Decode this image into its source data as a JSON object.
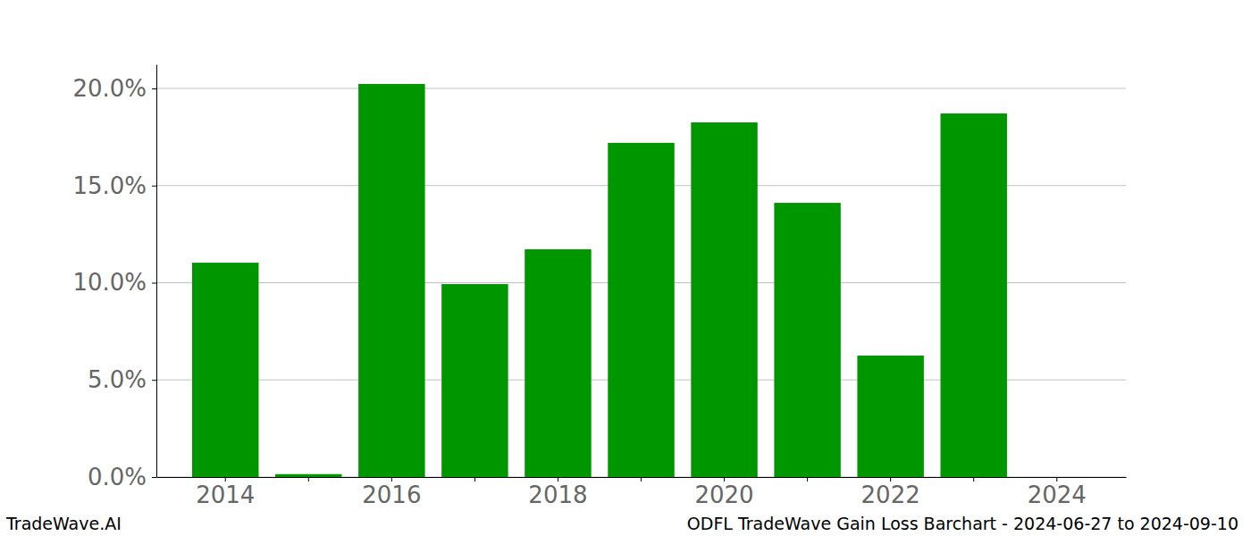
{
  "chart_data": {
    "type": "bar",
    "title": "ODFL TradeWave Gain Loss Barchart - 2024-06-27 to 2024-09-10",
    "annotations": [
      "TradeWave.AI"
    ],
    "categories": [
      "2014",
      null,
      "2016",
      null,
      "2018",
      null,
      "2020",
      null,
      "2022",
      null,
      "2024"
    ],
    "values": [
      11.03,
      0.15,
      20.23,
      9.93,
      11.72,
      17.2,
      18.25,
      14.11,
      6.25,
      18.71,
      0
    ],
    "color": "#009600",
    "ylim": [
      0,
      21.24
    ],
    "yticks": [
      {
        "value": 0,
        "label": "0.0%"
      },
      {
        "value": 5,
        "label": "5.0%"
      },
      {
        "value": 10,
        "label": "10.0%"
      },
      {
        "value": 15,
        "label": "15.0%"
      },
      {
        "value": 20,
        "label": "20.0%"
      }
    ],
    "grid": true
  }
}
